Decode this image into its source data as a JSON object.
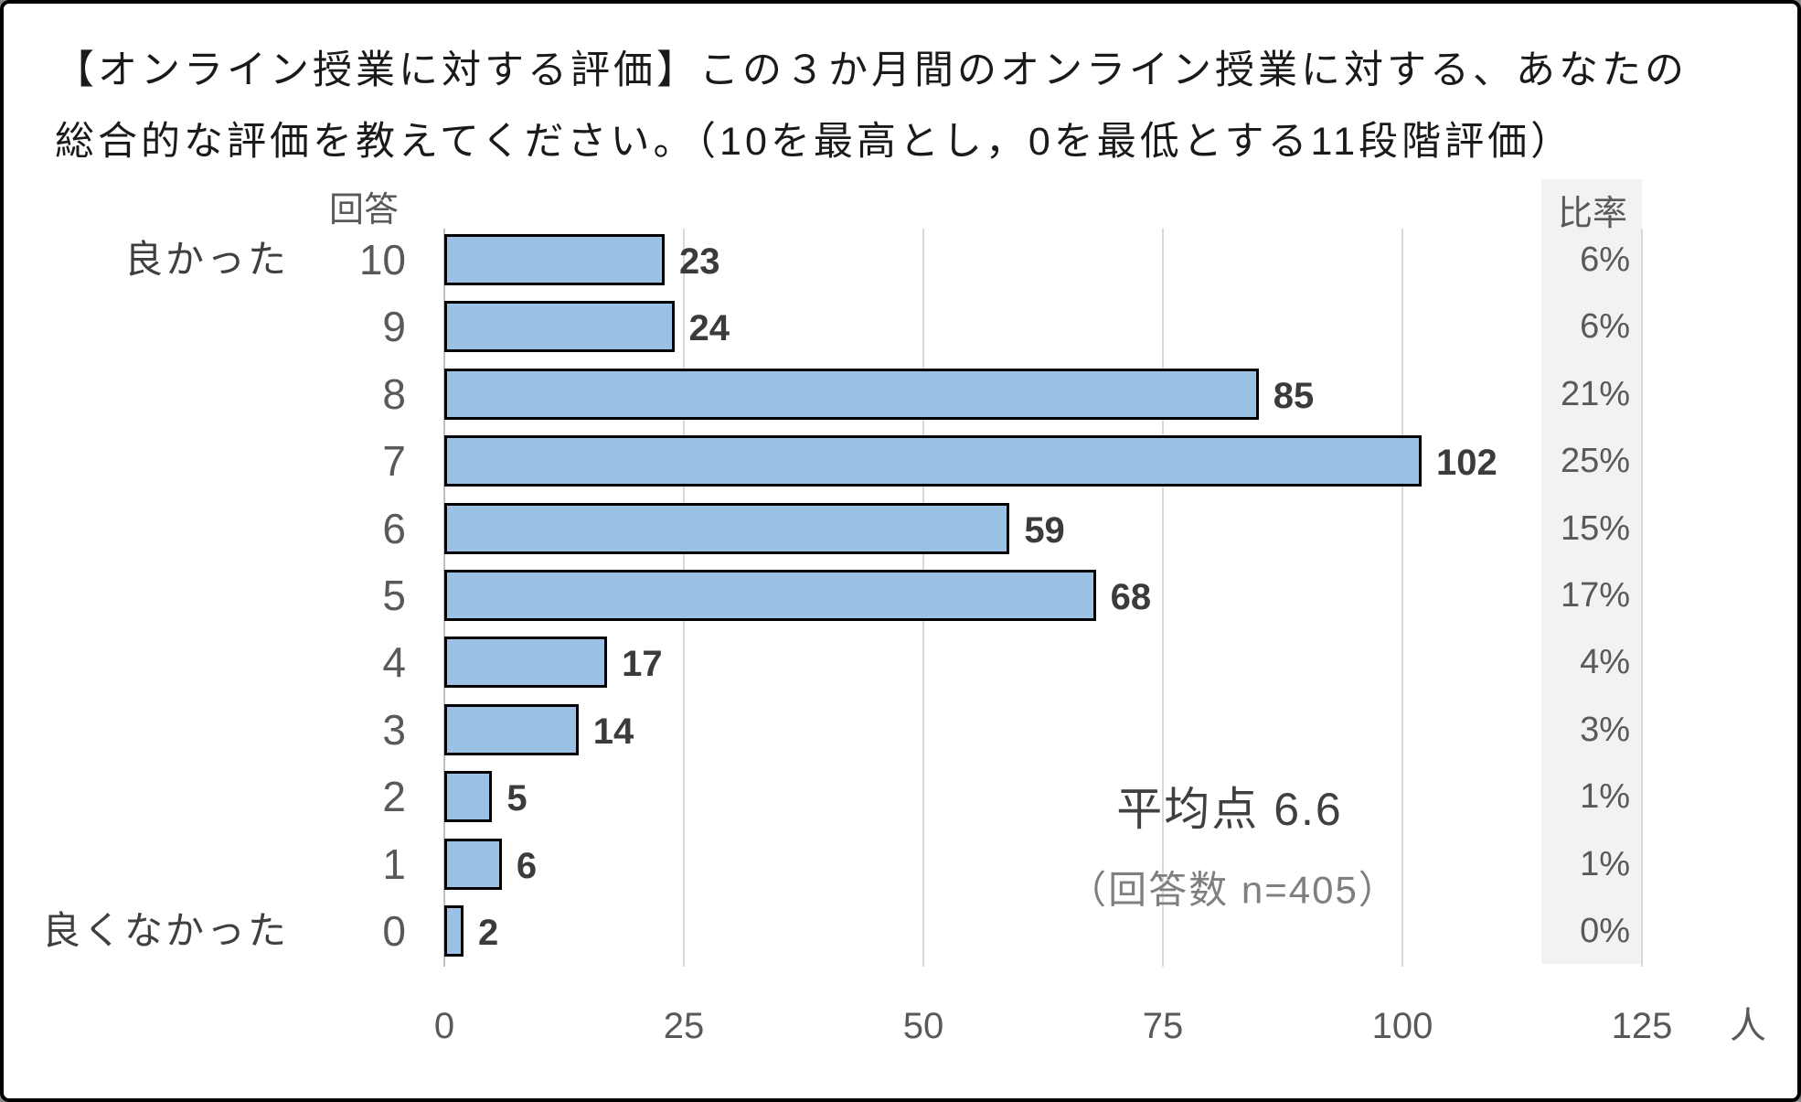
{
  "title": {
    "line1": "【オンライン授業に対する評価】この３か月間のオンライン授業に対する、あなたの",
    "line2": "総合的な評価を教えてください。（10を最高とし，0を最低とする11段階評価）"
  },
  "chart_data": {
    "type": "bar",
    "orientation": "horizontal",
    "title": "【オンライン授業に対する評価】この３か月間のオンライン授業に対する、あなたの総合的な評価を教えてください。（10を最高とし，0を最低とする11段階評価）",
    "category_axis_header": "回答",
    "ratio_column_header": "比率",
    "max_side_label": "良かった",
    "min_side_label": "良くなかった",
    "categories": [
      "10",
      "9",
      "8",
      "7",
      "6",
      "5",
      "4",
      "3",
      "2",
      "1",
      "0"
    ],
    "values": [
      23,
      24,
      85,
      102,
      59,
      68,
      17,
      14,
      5,
      6,
      2
    ],
    "ratios": [
      "6%",
      "6%",
      "21%",
      "25%",
      "15%",
      "17%",
      "4%",
      "3%",
      "1%",
      "1%",
      "0%"
    ],
    "x_ticks": [
      "0",
      "25",
      "50",
      "75",
      "100",
      "125"
    ],
    "xlim": [
      0,
      125
    ],
    "x_unit": "人",
    "average_note": "平均点 6.6",
    "n_note": "（回答数 n=405）",
    "grid": true,
    "legend": false,
    "colors": {
      "bar_fill": "#9BC2E5",
      "bar_border": "#000000",
      "gridline": "#d9d9d9",
      "axis_line": "#bfbfbf",
      "ratio_strip_bg": "#f2f2f2",
      "text_dark": "#1a1a1a",
      "text_gray": "#595959"
    }
  }
}
